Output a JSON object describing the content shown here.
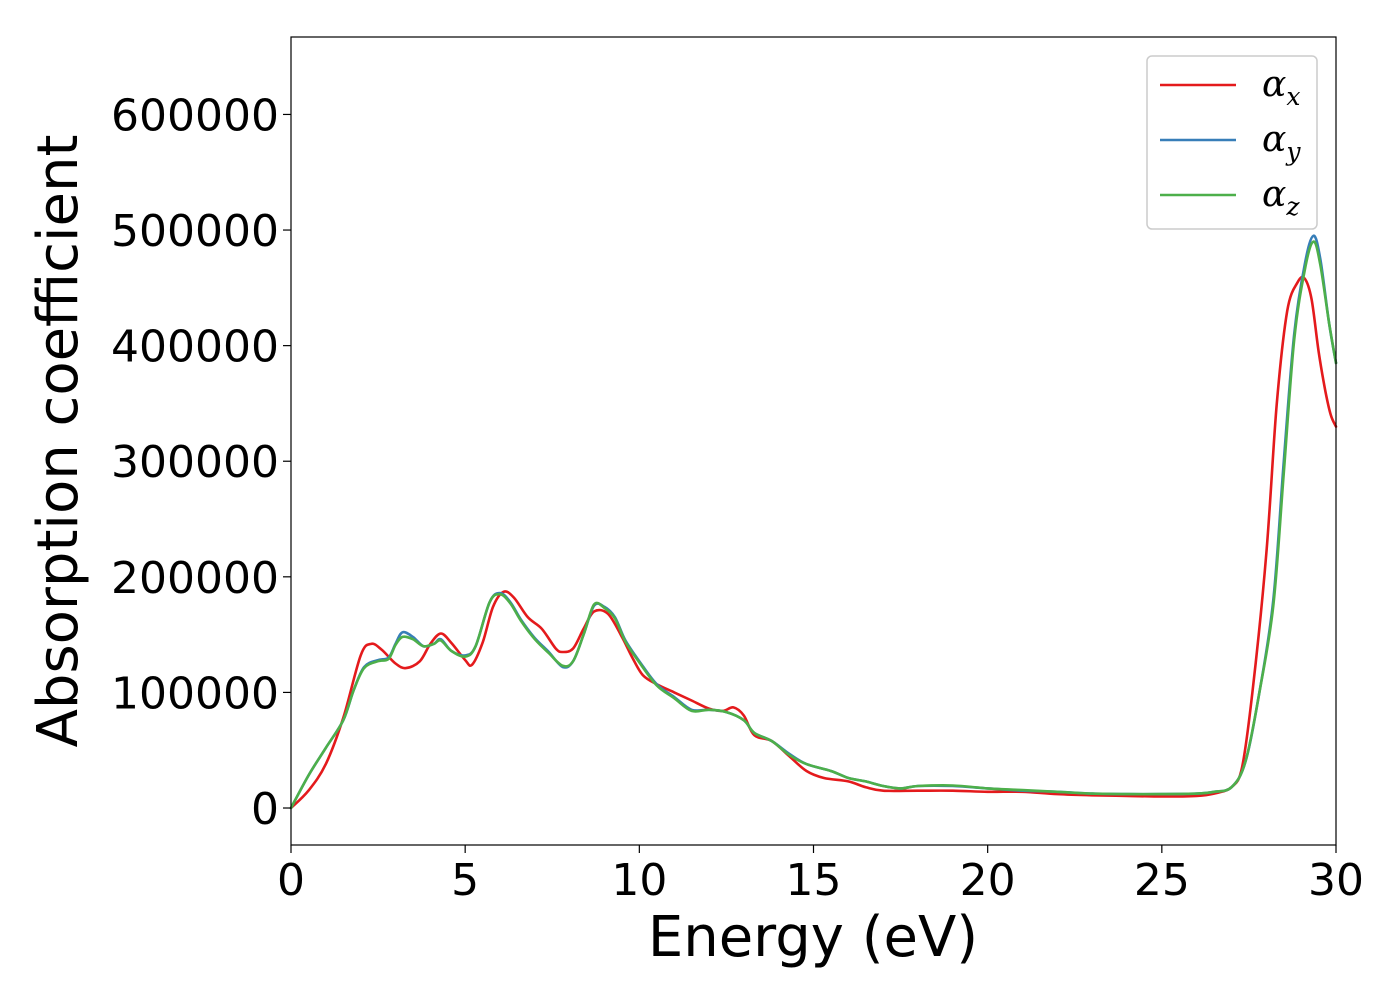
{
  "chart_data": {
    "type": "line",
    "xlabel": "Energy (eV)",
    "ylabel": "Absorption coefficient",
    "xlim": [
      0,
      30
    ],
    "ylim": [
      -32000,
      667000
    ],
    "xticks": [
      0,
      5,
      10,
      15,
      20,
      25,
      30
    ],
    "yticks": [
      0,
      100000,
      200000,
      300000,
      400000,
      500000,
      600000
    ],
    "grid": false,
    "legend_position": "top-right",
    "series": [
      {
        "name": "α_x",
        "label_main": "α",
        "label_sub": "x",
        "color": "#e41a1c",
        "points": [
          [
            0,
            0
          ],
          [
            0.5,
            15000
          ],
          [
            1.0,
            38000
          ],
          [
            1.5,
            78000
          ],
          [
            2.0,
            132000
          ],
          [
            2.3,
            142000
          ],
          [
            2.6,
            137000
          ],
          [
            3.0,
            125000
          ],
          [
            3.3,
            121000
          ],
          [
            3.7,
            127000
          ],
          [
            4.0,
            142000
          ],
          [
            4.3,
            151000
          ],
          [
            4.6,
            143000
          ],
          [
            5.0,
            128000
          ],
          [
            5.2,
            124000
          ],
          [
            5.5,
            143000
          ],
          [
            5.8,
            174000
          ],
          [
            6.1,
            187000
          ],
          [
            6.4,
            182000
          ],
          [
            6.8,
            165000
          ],
          [
            7.2,
            155000
          ],
          [
            7.6,
            138000
          ],
          [
            7.8,
            135000
          ],
          [
            8.1,
            138000
          ],
          [
            8.4,
            155000
          ],
          [
            8.7,
            170000
          ],
          [
            9.1,
            168000
          ],
          [
            9.5,
            148000
          ],
          [
            9.8,
            130000
          ],
          [
            10.1,
            115000
          ],
          [
            10.5,
            107000
          ],
          [
            11.0,
            100000
          ],
          [
            11.5,
            93000
          ],
          [
            12.0,
            86000
          ],
          [
            12.4,
            84000
          ],
          [
            12.7,
            87000
          ],
          [
            13.0,
            80000
          ],
          [
            13.3,
            63000
          ],
          [
            13.8,
            58000
          ],
          [
            14.3,
            45000
          ],
          [
            14.8,
            32000
          ],
          [
            15.3,
            26000
          ],
          [
            16.0,
            23000
          ],
          [
            16.5,
            18000
          ],
          [
            17.0,
            15000
          ],
          [
            18.0,
            15000
          ],
          [
            19.0,
            15000
          ],
          [
            20.0,
            14000
          ],
          [
            21.0,
            14000
          ],
          [
            22.0,
            12000
          ],
          [
            23.0,
            11000
          ],
          [
            24.0,
            10500
          ],
          [
            25.0,
            10000
          ],
          [
            26.0,
            10500
          ],
          [
            26.5,
            12500
          ],
          [
            27.0,
            18000
          ],
          [
            27.3,
            35000
          ],
          [
            27.6,
            100000
          ],
          [
            28.0,
            220000
          ],
          [
            28.3,
            350000
          ],
          [
            28.6,
            430000
          ],
          [
            28.9,
            455000
          ],
          [
            29.1,
            458000
          ],
          [
            29.3,
            440000
          ],
          [
            29.5,
            395000
          ],
          [
            29.7,
            360000
          ],
          [
            29.85,
            340000
          ],
          [
            30.0,
            330000
          ]
        ]
      },
      {
        "name": "α_y",
        "label_main": "α",
        "label_sub": "y",
        "color": "#377eb8",
        "points": [
          [
            0,
            0
          ],
          [
            0.5,
            28000
          ],
          [
            1.0,
            52000
          ],
          [
            1.5,
            76000
          ],
          [
            1.8,
            102000
          ],
          [
            2.1,
            122000
          ],
          [
            2.5,
            128000
          ],
          [
            2.8,
            130000
          ],
          [
            3.0,
            142000
          ],
          [
            3.2,
            152000
          ],
          [
            3.5,
            148000
          ],
          [
            3.8,
            140000
          ],
          [
            4.1,
            142000
          ],
          [
            4.3,
            146000
          ],
          [
            4.6,
            136000
          ],
          [
            5.0,
            132000
          ],
          [
            5.3,
            140000
          ],
          [
            5.7,
            178000
          ],
          [
            6.0,
            186000
          ],
          [
            6.3,
            178000
          ],
          [
            6.6,
            163000
          ],
          [
            7.0,
            147000
          ],
          [
            7.4,
            135000
          ],
          [
            7.8,
            122000
          ],
          [
            8.1,
            127000
          ],
          [
            8.4,
            150000
          ],
          [
            8.7,
            175000
          ],
          [
            9.0,
            174000
          ],
          [
            9.3,
            165000
          ],
          [
            9.6,
            145000
          ],
          [
            10.0,
            127000
          ],
          [
            10.5,
            107000
          ],
          [
            11.0,
            96000
          ],
          [
            11.5,
            85000
          ],
          [
            12.0,
            85000
          ],
          [
            12.5,
            83000
          ],
          [
            13.0,
            76000
          ],
          [
            13.3,
            65000
          ],
          [
            13.8,
            58000
          ],
          [
            14.3,
            47000
          ],
          [
            14.8,
            38000
          ],
          [
            15.5,
            32000
          ],
          [
            16.0,
            26000
          ],
          [
            16.5,
            23000
          ],
          [
            17.0,
            19000
          ],
          [
            17.5,
            17000
          ],
          [
            18.0,
            19000
          ],
          [
            19.0,
            19000
          ],
          [
            20.0,
            17000
          ],
          [
            21.0,
            15000
          ],
          [
            22.0,
            14000
          ],
          [
            23.0,
            12500
          ],
          [
            24.0,
            12000
          ],
          [
            25.0,
            12000
          ],
          [
            26.0,
            12500
          ],
          [
            26.5,
            14000
          ],
          [
            27.0,
            18000
          ],
          [
            27.4,
            40000
          ],
          [
            27.8,
            100000
          ],
          [
            28.2,
            180000
          ],
          [
            28.5,
            300000
          ],
          [
            28.8,
            410000
          ],
          [
            29.1,
            470000
          ],
          [
            29.35,
            495000
          ],
          [
            29.55,
            475000
          ],
          [
            29.8,
            420000
          ],
          [
            30.0,
            385000
          ]
        ]
      },
      {
        "name": "α_z",
        "label_main": "α",
        "label_sub": "z",
        "color": "#4daf4a",
        "points": [
          [
            0,
            0
          ],
          [
            0.5,
            28000
          ],
          [
            1.0,
            52000
          ],
          [
            1.5,
            76000
          ],
          [
            1.8,
            102000
          ],
          [
            2.1,
            121000
          ],
          [
            2.5,
            127000
          ],
          [
            2.8,
            129000
          ],
          [
            3.0,
            141000
          ],
          [
            3.2,
            148000
          ],
          [
            3.5,
            146000
          ],
          [
            3.8,
            140000
          ],
          [
            4.1,
            142000
          ],
          [
            4.3,
            145000
          ],
          [
            4.6,
            136000
          ],
          [
            5.0,
            131000
          ],
          [
            5.3,
            140000
          ],
          [
            5.7,
            178000
          ],
          [
            6.0,
            185000
          ],
          [
            6.3,
            177000
          ],
          [
            6.6,
            162000
          ],
          [
            7.0,
            146000
          ],
          [
            7.4,
            134000
          ],
          [
            7.8,
            123000
          ],
          [
            8.1,
            127000
          ],
          [
            8.4,
            150000
          ],
          [
            8.7,
            176000
          ],
          [
            9.0,
            173000
          ],
          [
            9.3,
            164000
          ],
          [
            9.6,
            144000
          ],
          [
            10.0,
            126000
          ],
          [
            10.5,
            106000
          ],
          [
            11.0,
            95000
          ],
          [
            11.5,
            84000
          ],
          [
            12.0,
            85000
          ],
          [
            12.5,
            83000
          ],
          [
            13.0,
            76000
          ],
          [
            13.3,
            65000
          ],
          [
            13.8,
            58000
          ],
          [
            14.3,
            46000
          ],
          [
            14.8,
            38000
          ],
          [
            15.5,
            32000
          ],
          [
            16.0,
            26000
          ],
          [
            16.5,
            23000
          ],
          [
            17.0,
            19000
          ],
          [
            17.5,
            17000
          ],
          [
            18.0,
            19000
          ],
          [
            19.0,
            19500
          ],
          [
            20.0,
            17000
          ],
          [
            21.0,
            15500
          ],
          [
            22.0,
            14000
          ],
          [
            23.0,
            12500
          ],
          [
            24.0,
            12000
          ],
          [
            25.0,
            12000
          ],
          [
            26.0,
            12500
          ],
          [
            26.5,
            14000
          ],
          [
            27.0,
            18000
          ],
          [
            27.4,
            40000
          ],
          [
            27.8,
            100000
          ],
          [
            28.2,
            175000
          ],
          [
            28.5,
            290000
          ],
          [
            28.8,
            405000
          ],
          [
            29.1,
            465000
          ],
          [
            29.35,
            490000
          ],
          [
            29.55,
            470000
          ],
          [
            29.8,
            420000
          ],
          [
            30.0,
            385000
          ]
        ]
      }
    ]
  }
}
